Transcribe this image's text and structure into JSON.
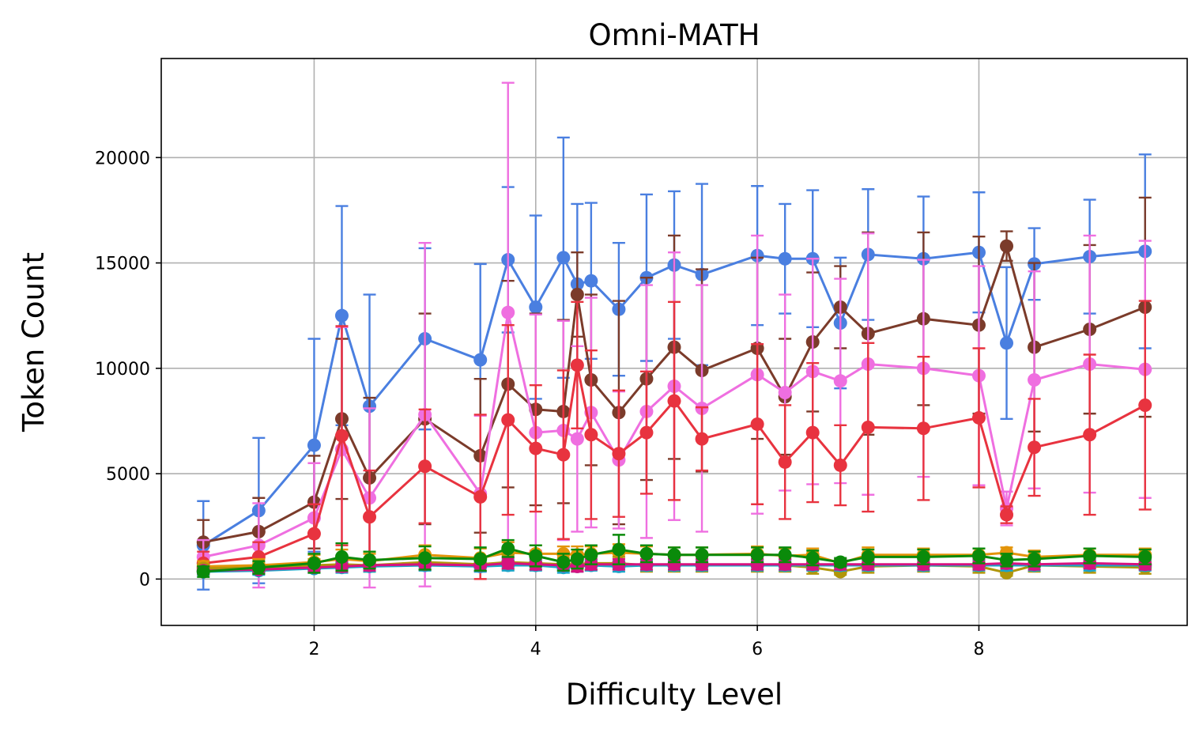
{
  "chart_data": {
    "type": "line",
    "title": "Omni-MATH",
    "xlabel": "Difficulty Level",
    "ylabel": "Token Count",
    "xlim": [
      0.62,
      9.88
    ],
    "ylim": [
      -2200,
      24700
    ],
    "xticks": [
      2,
      4,
      6,
      8
    ],
    "yticks": [
      0,
      5000,
      10000,
      15000,
      20000
    ],
    "grid": true,
    "x": [
      1.0,
      1.5,
      2.0,
      2.25,
      2.5,
      3.0,
      3.5,
      3.75,
      4.0,
      4.25,
      4.375,
      4.5,
      4.75,
      5.0,
      5.25,
      5.5,
      6.0,
      6.25,
      6.5,
      6.75,
      7.0,
      7.5,
      8.0,
      8.25,
      8.5,
      9.0,
      9.5
    ],
    "series": [
      {
        "name": "blue",
        "color": "#4a7fe0",
        "values": [
          1600,
          3250,
          6350,
          12500,
          8200,
          11400,
          10400,
          15150,
          12900,
          15250,
          14000,
          14150,
          12800,
          14300,
          14900,
          14450,
          15350,
          15200,
          15200,
          12150,
          15400,
          15200,
          15500,
          11200,
          14950,
          15300,
          15550
        ],
        "errors": [
          2100,
          3450,
          5050,
          5200,
          5300,
          4300,
          4550,
          3450,
          4350,
          5700,
          3800,
          3700,
          3150,
          3950,
          3500,
          4300,
          3300,
          2600,
          3250,
          3100,
          3100,
          2950,
          2850,
          3600,
          1700,
          2700,
          4600
        ]
      },
      {
        "name": "brown",
        "color": "#7b3b2a",
        "values": [
          1750,
          2250,
          3650,
          7600,
          4800,
          7600,
          5850,
          9250,
          8050,
          7950,
          13500,
          9450,
          7900,
          9500,
          11000,
          9900,
          10950,
          8650,
          11250,
          12900,
          11650,
          12350,
          12050,
          15800,
          11000,
          11850,
          12900
        ],
        "errors": [
          1050,
          1600,
          2200,
          3800,
          3800,
          5000,
          3650,
          4900,
          4550,
          4350,
          2000,
          4050,
          5300,
          4800,
          5300,
          4800,
          4300,
          2750,
          3300,
          1950,
          4800,
          4100,
          4200,
          700,
          4000,
          4000,
          5200
        ]
      },
      {
        "name": "pink",
        "color": "#ef6fe0",
        "values": [
          1050,
          1600,
          2900,
          6150,
          3850,
          7800,
          4050,
          12650,
          6950,
          7050,
          6650,
          7900,
          5650,
          7950,
          9150,
          8100,
          9700,
          8850,
          9850,
          9400,
          10200,
          10000,
          9650,
          3350,
          9450,
          10200,
          9950
        ],
        "errors": [
          800,
          2000,
          2600,
          5800,
          4250,
          8150,
          3700,
          10900,
          5600,
          5200,
          4400,
          5450,
          3250,
          6000,
          6350,
          5850,
          6600,
          4650,
          5350,
          4850,
          6200,
          5150,
          5200,
          800,
          5150,
          6100,
          6100
        ]
      },
      {
        "name": "red",
        "color": "#e8333f",
        "values": [
          750,
          1050,
          2150,
          6800,
          2950,
          5350,
          3900,
          7550,
          6200,
          5900,
          10150,
          6850,
          5950,
          6950,
          8450,
          6650,
          7350,
          5550,
          6950,
          5400,
          7200,
          7150,
          7650,
          3050,
          6250,
          6850,
          8250
        ],
        "errors": [
          550,
          700,
          1400,
          5200,
          2200,
          2700,
          3900,
          4500,
          3000,
          4000,
          3000,
          4000,
          3000,
          2900,
          4700,
          1500,
          3800,
          2700,
          3300,
          1900,
          4000,
          3400,
          3300,
          400,
          2300,
          3800,
          4950
        ]
      },
      {
        "name": "orange",
        "color": "#e3940a",
        "values": [
          600,
          650,
          800,
          950,
          850,
          1150,
          1000,
          1250,
          1200,
          1200,
          1150,
          1200,
          1250,
          1200,
          1150,
          1150,
          1200,
          1100,
          1150,
          750,
          1150,
          1150,
          1150,
          1250,
          1050,
          1150,
          1150
        ],
        "errors": [
          250,
          300,
          350,
          450,
          350,
          450,
          450,
          500,
          400,
          350,
          400,
          350,
          400,
          350,
          350,
          350,
          350,
          350,
          300,
          200,
          350,
          300,
          300,
          250,
          300,
          300,
          300
        ]
      },
      {
        "name": "olive",
        "color": "#b0960a",
        "values": [
          500,
          550,
          650,
          700,
          650,
          800,
          700,
          800,
          750,
          700,
          700,
          750,
          750,
          650,
          650,
          650,
          650,
          650,
          550,
          350,
          600,
          650,
          600,
          300,
          650,
          600,
          550
        ],
        "errors": [
          200,
          250,
          300,
          350,
          300,
          350,
          300,
          350,
          300,
          300,
          300,
          300,
          300,
          300,
          300,
          300,
          300,
          300,
          300,
          150,
          300,
          300,
          300,
          150,
          300,
          300,
          300
        ]
      },
      {
        "name": "cyan",
        "color": "#1aa5c9",
        "values": [
          350,
          400,
          500,
          550,
          600,
          650,
          600,
          650,
          650,
          550,
          600,
          650,
          600,
          650,
          650,
          650,
          650,
          650,
          650,
          650,
          650,
          650,
          650,
          650,
          650,
          650,
          650
        ],
        "errors": [
          150,
          200,
          200,
          250,
          250,
          250,
          250,
          250,
          250,
          250,
          250,
          250,
          250,
          250,
          250,
          250,
          250,
          250,
          250,
          250,
          250,
          250,
          250,
          250,
          250,
          250,
          250
        ]
      },
      {
        "name": "magenta",
        "color": "#d6127f",
        "values": [
          400,
          450,
          550,
          600,
          650,
          700,
          650,
          750,
          700,
          650,
          600,
          700,
          700,
          700,
          700,
          700,
          700,
          700,
          700,
          700,
          700,
          700,
          700,
          750,
          700,
          750,
          700
        ],
        "errors": [
          150,
          200,
          200,
          250,
          250,
          250,
          250,
          250,
          250,
          250,
          250,
          250,
          250,
          250,
          250,
          250,
          250,
          250,
          250,
          250,
          250,
          250,
          250,
          250,
          250,
          250,
          250
        ]
      },
      {
        "name": "green",
        "color": "#0a8a0a",
        "values": [
          350,
          550,
          750,
          1050,
          900,
          1000,
          950,
          1450,
          1100,
          800,
          950,
          1150,
          1400,
          1200,
          1150,
          1150,
          1150,
          1150,
          1000,
          800,
          1050,
          1050,
          1100,
          900,
          950,
          1100,
          1050
        ],
        "errors": [
          250,
          300,
          450,
          650,
          400,
          550,
          550,
          400,
          500,
          400,
          450,
          450,
          700,
          400,
          350,
          350,
          350,
          350,
          350,
          200,
          350,
          350,
          350,
          300,
          350,
          350,
          350
        ]
      }
    ]
  }
}
